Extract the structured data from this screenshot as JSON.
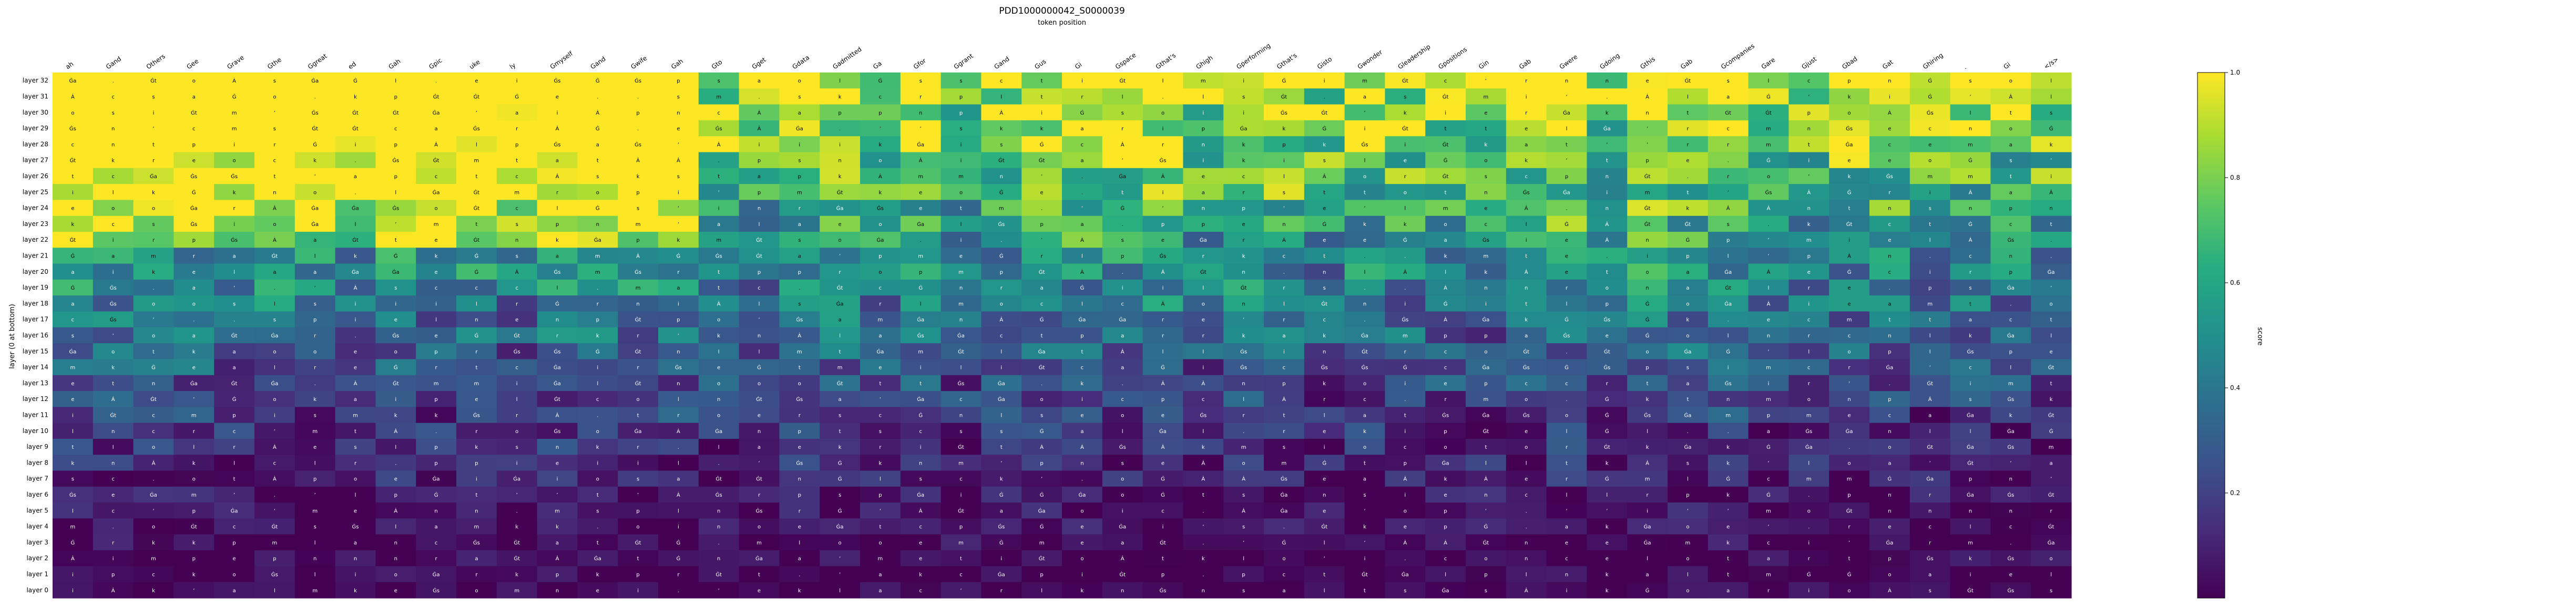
{
  "chart_data": {
    "type": "heatmap",
    "title": "PDD1000000042_S0000039",
    "xlabel": "token position",
    "ylabel": "layer (0 at bottom)",
    "colorbar_label": "score",
    "colorbar_range": [
      0.0,
      1.0
    ],
    "colorbar_ticks": [
      "1.0",
      "0.8",
      "0.6",
      "0.4",
      "0.2"
    ],
    "colormap": "viridis",
    "x_tokens": [
      "ah",
      "Gand",
      "Others",
      "Gee",
      "Grave",
      "Gthe",
      "Ggreat",
      "ed",
      "Gah",
      "Gpic",
      "uke",
      "ly",
      "Gmyself",
      "Gand",
      "Gwife",
      "Gah",
      "Gto",
      "Gget",
      "Gdata",
      "Gadmitted",
      "Ga",
      "Gfor",
      "Ggrant",
      "Gand",
      "Gus",
      "Gi",
      "Gspace",
      "Gthat's",
      "Ghigh",
      "Gperforming",
      "Gthat's",
      "Gisto",
      "Gwonder",
      "Gleadership",
      "Gpositions",
      "Gin",
      "Gab",
      "Gwere",
      "Gdoing",
      "Gthis",
      "Gab",
      "Gcompanies",
      "Gare",
      "Gjust",
      "Gbad",
      "Gat",
      "Ghiring",
      ".",
      "Gi",
      "</s>"
    ],
    "y_layers": [
      "layer 32",
      "layer 31",
      "layer 30",
      "layer 29",
      "layer 28",
      "layer 27",
      "layer 26",
      "layer 25",
      "layer 24",
      "layer 23",
      "layer 22",
      "layer 21",
      "layer 20",
      "layer 19",
      "layer 18",
      "layer 17",
      "layer 16",
      "layer 15",
      "layer 14",
      "layer 13",
      "layer 12",
      "layer 11",
      "layer 10",
      "layer 9",
      "layer 8",
      "layer 7",
      "layer 6",
      "layer 5",
      "layer 4",
      "layer 3",
      "layer 2",
      "layer 1",
      "layer 0"
    ],
    "cell_glyphs": [
      "Ȧ",
      "Ġ",
      "a",
      "e",
      "o",
      "s",
      "i",
      "t",
      "m",
      "n",
      "’",
      "r",
      "c",
      "l",
      "k",
      "p",
      "Ġs",
      "Ġt",
      "Ġa",
      "."
    ],
    "grid": false,
    "colorbar_position": "right"
  }
}
